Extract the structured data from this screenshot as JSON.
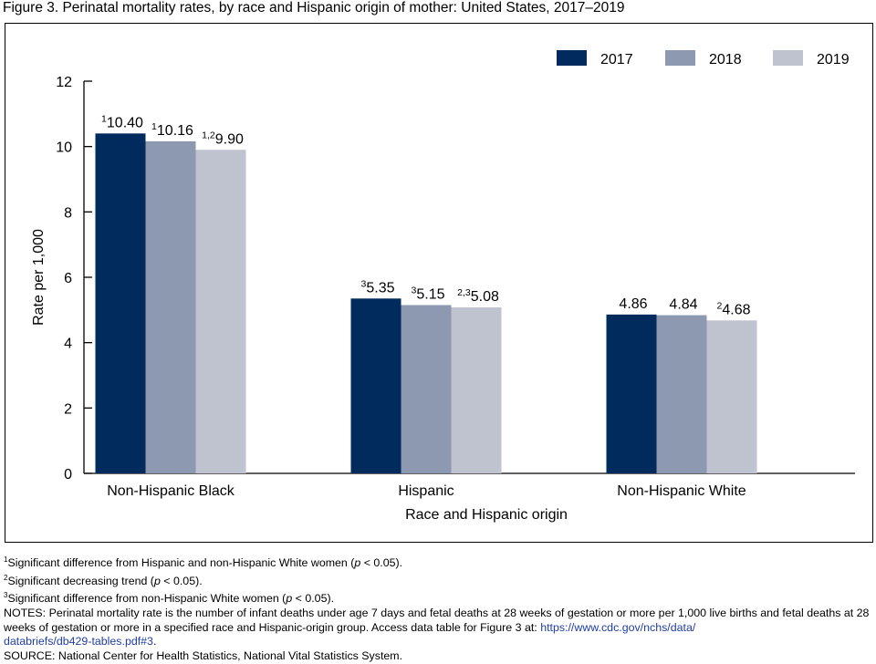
{
  "figure": {
    "title": "Figure 3. Perinatal mortality rates, by race and Hispanic origin of mother: United States, 2017–2019"
  },
  "chart_data": {
    "type": "bar",
    "categories": [
      "Non-Hispanic Black",
      "Hispanic",
      "Non-Hispanic White"
    ],
    "series": [
      {
        "name": "2017",
        "color": "#002b5c",
        "values": [
          10.4,
          5.35,
          4.86
        ],
        "labels": [
          "10.40",
          "5.35",
          "4.86"
        ],
        "sups": [
          "1",
          "3",
          ""
        ]
      },
      {
        "name": "2018",
        "color": "#8d99b1",
        "values": [
          10.16,
          5.15,
          4.84
        ],
        "labels": [
          "10.16",
          "5.15",
          "4.84"
        ],
        "sups": [
          "1",
          "3",
          ""
        ]
      },
      {
        "name": "2019",
        "color": "#bec3cf",
        "values": [
          9.9,
          5.08,
          4.68
        ],
        "labels": [
          "9.90",
          "5.08",
          "4.68"
        ],
        "sups": [
          "1,2",
          "2,3",
          "2"
        ]
      }
    ],
    "ylabel": "Rate per 1,000",
    "xlabel": "Race and Hispanic origin",
    "ylim": [
      0,
      12
    ],
    "yticks": [
      "0",
      "2",
      "4",
      "6",
      "8",
      "10",
      "12"
    ],
    "legend_position": "top-right",
    "grid": false
  },
  "footnotes": {
    "fn1": {
      "sup": "1",
      "text": "Significant difference from Hispanic and non-Hispanic White women (",
      "p": "p",
      "tail": " < 0.05)."
    },
    "fn2": {
      "sup": "2",
      "text": "Significant decreasing trend (",
      "p": "p",
      "tail": " < 0.05)."
    },
    "fn3": {
      "sup": "3",
      "text": "Significant difference from non-Hispanic White women (",
      "p": "p",
      "tail": " < 0.05)."
    },
    "notes_text": "NOTES: Perinatal mortality rate is the number of infant deaths under age 7 days and fetal deaths at 28 weeks of gestation or more per 1,000 live births and fetal deaths at 28 weeks of gestation or more in a specified race and Hispanic-origin group. Access data table for Figure 3 at: ",
    "link_line1": "https://www.cdc.gov/nchs/data/",
    "link_line2": "databriefs/db429-tables.pdf#3",
    "notes_end": ".",
    "source": "SOURCE: National Center for Health Statistics, National Vital Statistics System."
  }
}
